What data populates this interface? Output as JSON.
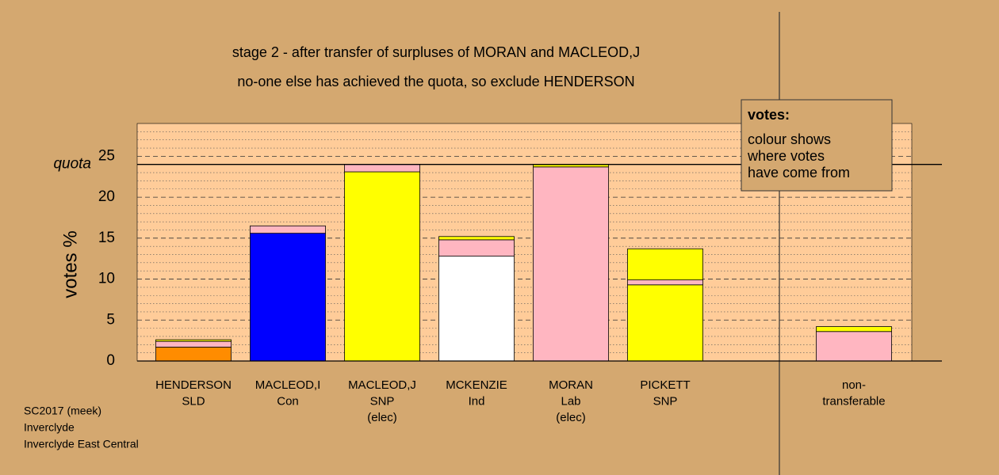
{
  "chart_data": {
    "type": "stacked-bar",
    "title": "stage 2 - after transfer of surpluses of MORAN and MACLEOD,J",
    "subtitle": "no-one else has achieved the quota, so exclude HENDERSON",
    "y_label": "votes %",
    "categories": [
      [
        "HENDERSON",
        "SLD"
      ],
      [
        "MACLEOD,I",
        "Con"
      ],
      [
        "MACLEOD,J",
        "SNP",
        "(elec)"
      ],
      [
        "MCKENZIE",
        "Ind"
      ],
      [
        "MORAN",
        "Lab",
        "(elec)"
      ],
      [
        "PICKETT",
        "SNP"
      ],
      null,
      [
        "non-",
        "transferable"
      ]
    ],
    "stacks": [
      [
        {
          "color": "#ff8c00",
          "value": 1.7
        },
        {
          "color": "#ffb6c1",
          "value": 0.7
        },
        {
          "color": "#ffff00",
          "value": 0.2
        }
      ],
      [
        {
          "color": "#0000ff",
          "value": 15.6
        },
        {
          "color": "#ffb6c1",
          "value": 0.9
        }
      ],
      [
        {
          "color": "#ffff00",
          "value": 23.1
        },
        {
          "color": "#ffb6c1",
          "value": 0.9
        }
      ],
      [
        {
          "color": "#ffffff",
          "value": 12.8
        },
        {
          "color": "#ffb6c1",
          "value": 2.0
        },
        {
          "color": "#ffff00",
          "value": 0.4
        }
      ],
      [
        {
          "color": "#ffb6c1",
          "value": 23.7
        },
        {
          "color": "#ffff00",
          "value": 0.3
        }
      ],
      [
        {
          "color": "#ffff00",
          "value": 9.3
        },
        {
          "color": "#ffb6c1",
          "value": 0.6
        },
        {
          "color": "#ffff00",
          "value": 3.8
        }
      ],
      [],
      [
        {
          "color": "#ffb6c1",
          "value": 3.6
        },
        {
          "color": "#ffff00",
          "value": 0.6
        }
      ]
    ],
    "quota": {
      "label": "quota",
      "value": 24
    },
    "ylim": [
      0,
      29
    ],
    "yticks": [
      0,
      5,
      10,
      15,
      20,
      25
    ],
    "minor_yticks": [
      1,
      2,
      3,
      4,
      6,
      7,
      8,
      9,
      11,
      12,
      13,
      14,
      16,
      17,
      18,
      19,
      21,
      22,
      23,
      24,
      26,
      27,
      28
    ],
    "grid": true,
    "note": {
      "title": "votes:",
      "lines": [
        "colour shows",
        "where votes",
        "have come from"
      ]
    },
    "footer": [
      "SC2017 (meek)",
      "Inverclyde",
      "Inverclyde East Central"
    ]
  }
}
